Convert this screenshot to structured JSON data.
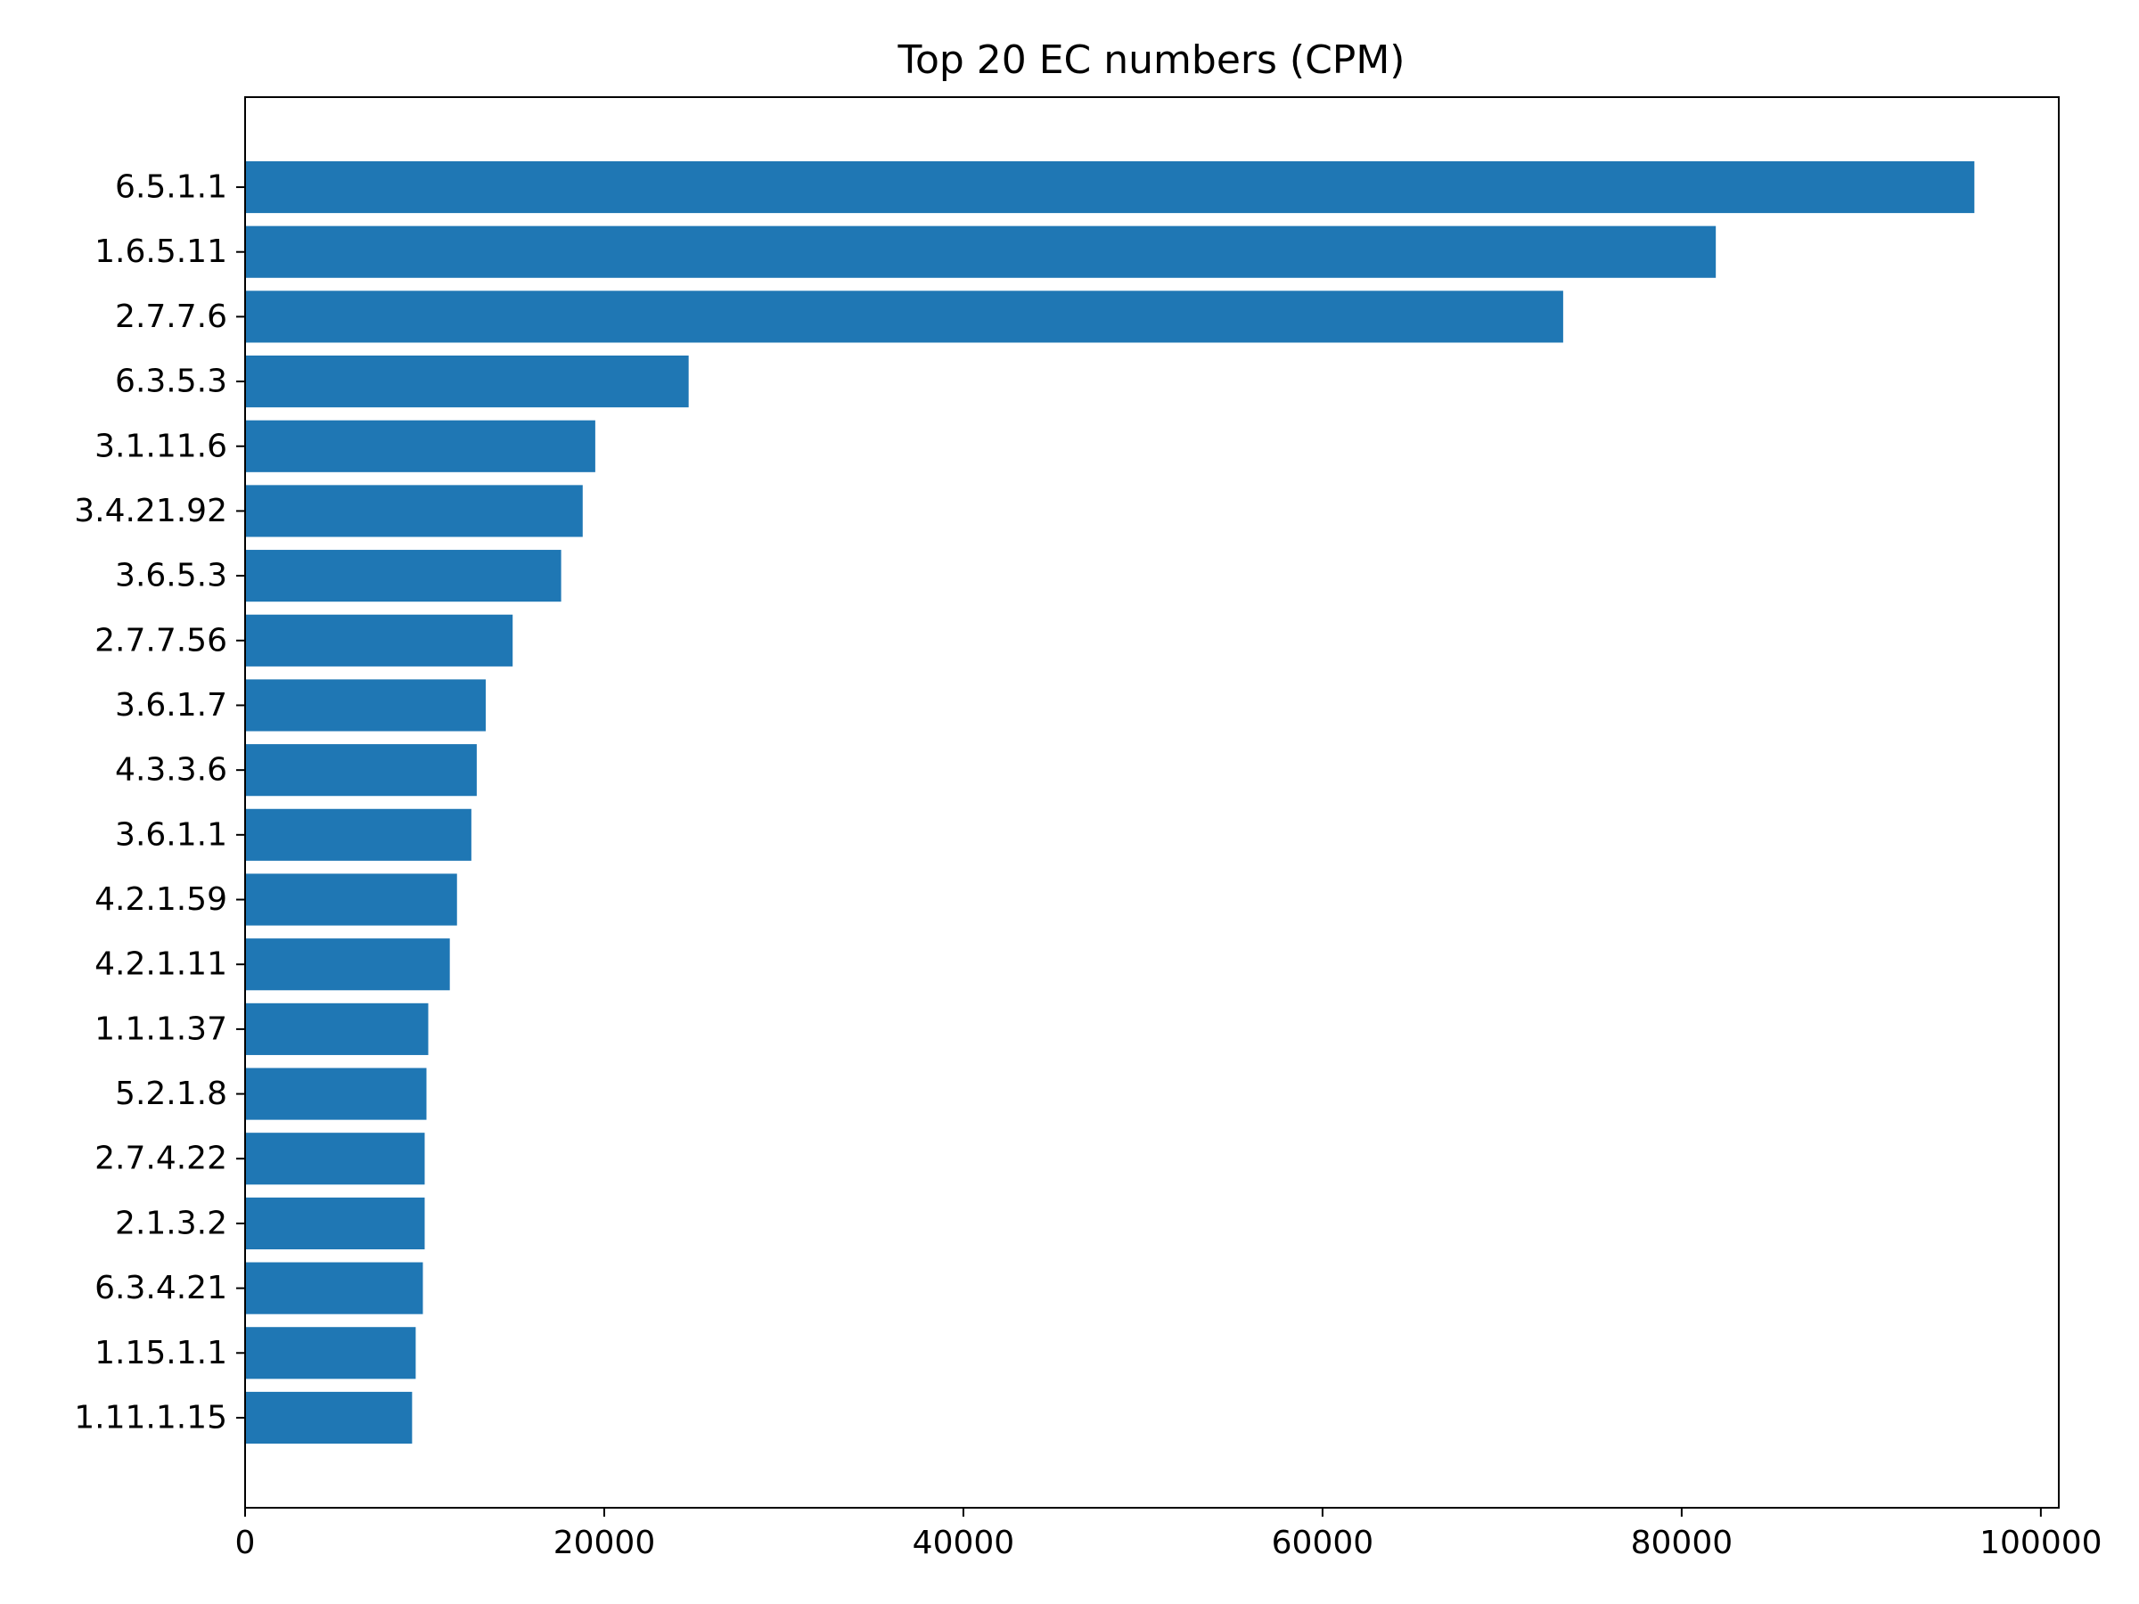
{
  "chart_data": {
    "type": "bar",
    "orientation": "horizontal",
    "title": "Top 20 EC numbers (CPM)",
    "xlabel": "",
    "ylabel": "",
    "categories": [
      "6.5.1.1",
      "1.6.5.11",
      "2.7.7.6",
      "6.3.5.3",
      "3.1.11.6",
      "3.4.21.92",
      "3.6.5.3",
      "2.7.7.56",
      "3.6.1.7",
      "4.3.3.6",
      "3.6.1.1",
      "4.2.1.59",
      "4.2.1.11",
      "1.1.1.37",
      "5.2.1.8",
      "2.7.4.22",
      "2.1.3.2",
      "6.3.4.21",
      "1.15.1.1",
      "1.11.1.15"
    ],
    "values": [
      96300,
      81900,
      73400,
      24700,
      19500,
      18800,
      17600,
      14900,
      13400,
      12900,
      12600,
      11800,
      11400,
      10200,
      10100,
      10000,
      10000,
      9900,
      9500,
      9300
    ],
    "xlim": [
      0,
      101000
    ],
    "xticks": [
      0,
      20000,
      40000,
      60000,
      80000,
      100000
    ],
    "xtick_labels": [
      "0",
      "20000",
      "40000",
      "60000",
      "80000",
      "100000"
    ],
    "bar_color": "#1f77b4",
    "grid": false,
    "legend": "none"
  }
}
